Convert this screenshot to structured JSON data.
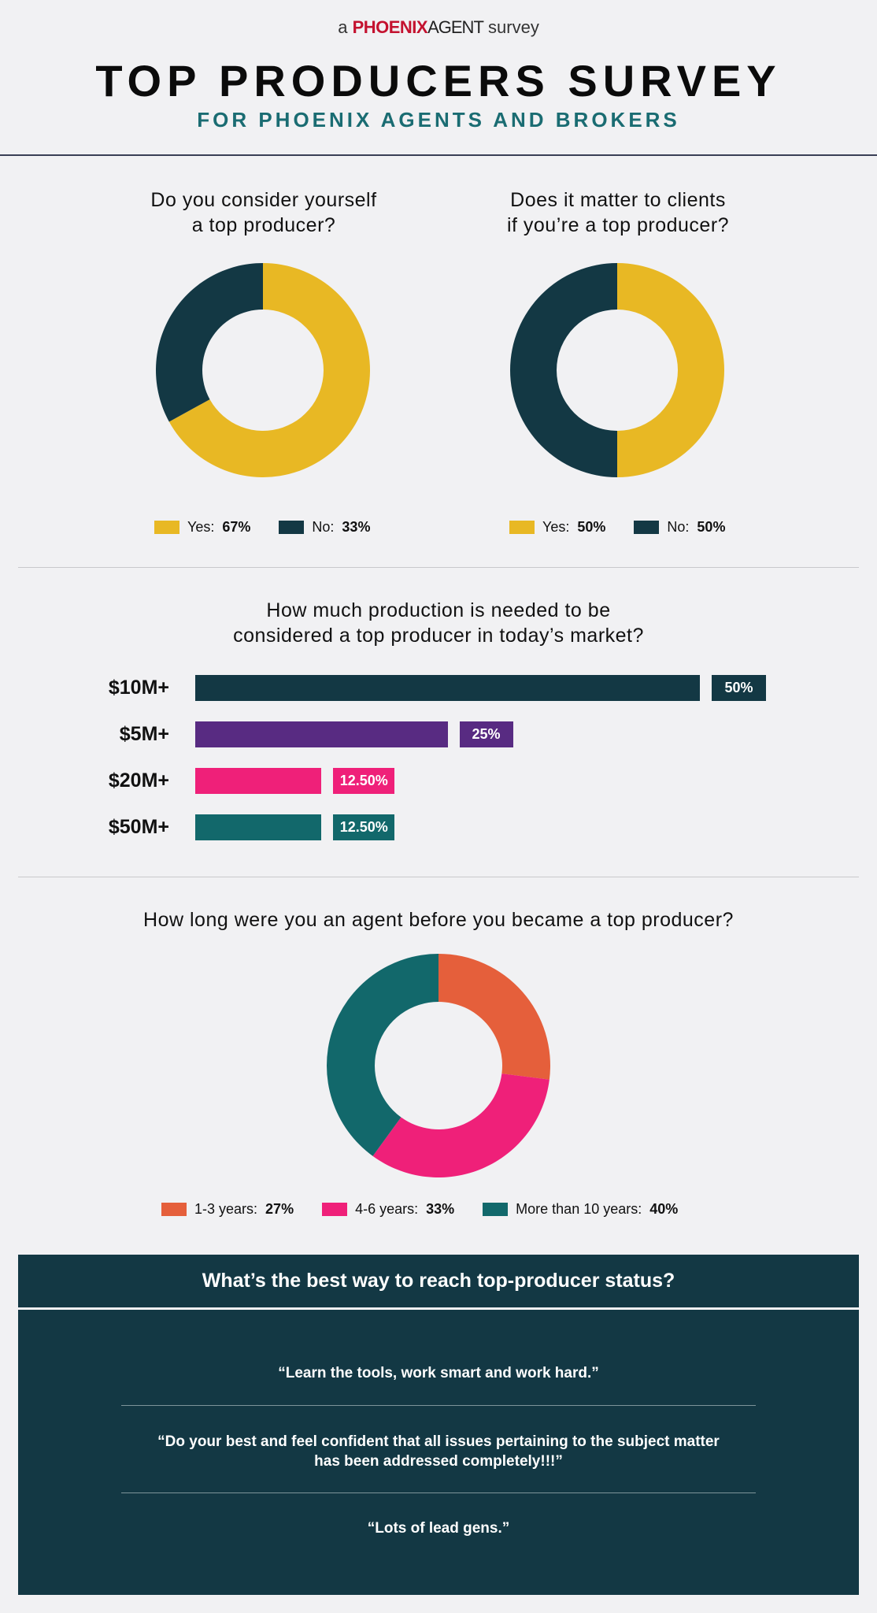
{
  "header": {
    "brand_prefix": "a",
    "brand_name_1": "PHOENIX",
    "brand_name_2": "AGENT",
    "brand_suffix": "survey",
    "title": "TOP PRODUCERS SURVEY",
    "subtitle": "FOR PHOENIX AGENTS AND BROKERS"
  },
  "colors": {
    "yellow": "#e8b824",
    "navy": "#133844",
    "purple": "#582b82",
    "pink": "#ef2079",
    "teal": "#12686b",
    "orange": "#e55f3b"
  },
  "chart_data": [
    {
      "type": "pie",
      "title_line1": "Do you consider yourself",
      "title_line2": "a top producer?",
      "slices": [
        {
          "label": "Yes:",
          "value": 67,
          "display": "67%",
          "color": "#e8b824"
        },
        {
          "label": "No:",
          "value": 33,
          "display": "33%",
          "color": "#133844"
        }
      ]
    },
    {
      "type": "pie",
      "title_line1": "Does it matter to clients",
      "title_line2": "if you’re a top producer?",
      "slices": [
        {
          "label": "Yes:",
          "value": 50,
          "display": "50%",
          "color": "#e8b824"
        },
        {
          "label": "No:",
          "value": 50,
          "display": "50%",
          "color": "#133844"
        }
      ]
    },
    {
      "type": "bar",
      "orientation": "horizontal",
      "title_line1": "How much production is needed to be",
      "title_line2": "considered a top producer in today’s market?",
      "categories": [
        "$10M+",
        "$5M+",
        "$20M+",
        "$50M+"
      ],
      "values": [
        50,
        25,
        12.5,
        12.5
      ],
      "value_labels": [
        "50%",
        "25%",
        "12.50%",
        "12.50%"
      ],
      "colors": [
        "#133844",
        "#582b82",
        "#ef2079",
        "#12686b"
      ]
    },
    {
      "type": "pie",
      "title_line1": "How long were you an agent before you became a top producer?",
      "slices": [
        {
          "label": "1-3 years:",
          "value": 27,
          "display": "27%",
          "color": "#e55f3b"
        },
        {
          "label": "4-6 years:",
          "value": 33,
          "display": "33%",
          "color": "#ef2079"
        },
        {
          "label": "More than 10 years:",
          "value": 40,
          "display": "40%",
          "color": "#12686b"
        }
      ]
    }
  ],
  "quotes_panel": {
    "title": "What’s the best way to reach top-producer status?",
    "quotes": [
      "“Learn the tools, work smart and work hard.”",
      "“Do your best and feel confident that all issues pertaining to the subject matter has been addressed completely!!!”",
      "“Lots of lead gens.”"
    ]
  }
}
